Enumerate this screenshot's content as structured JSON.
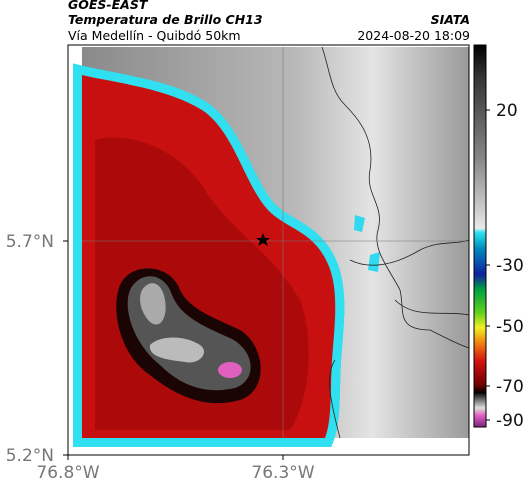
{
  "header": {
    "source": "GOES-EAST",
    "product": "Temperatura de Brillo CH13",
    "route": "Vía Medellín - Quibdó 50km",
    "org": "SIATA",
    "datetime": "2024-08-20 18:09"
  },
  "axes": {
    "lat_labels": [
      "5.7°N",
      "5.2°N"
    ],
    "lon_labels": [
      "76.8°W",
      "76.3°W"
    ]
  },
  "colorbar": {
    "ticks": [
      20,
      -30,
      -50,
      -70,
      -90
    ]
  }
}
